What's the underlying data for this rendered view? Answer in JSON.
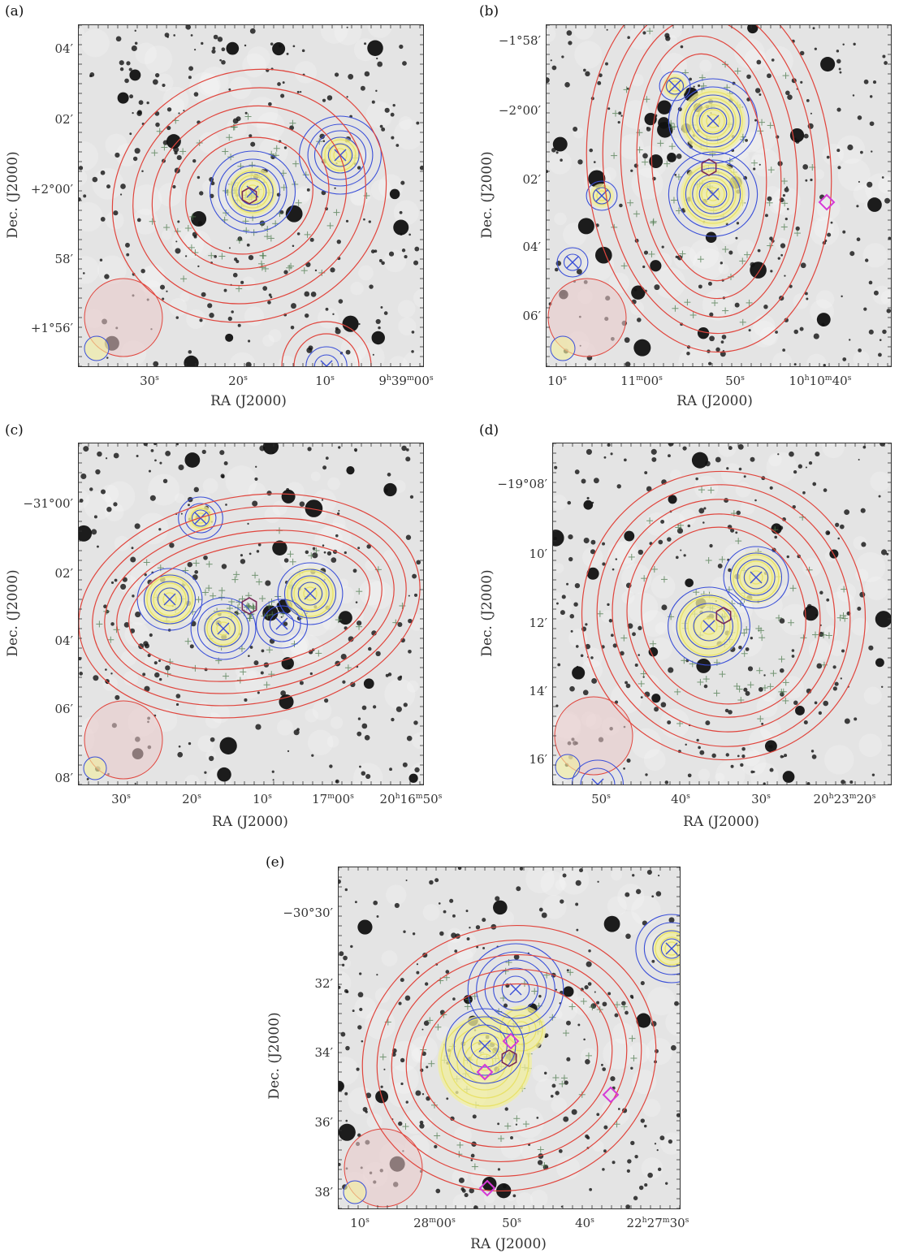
{
  "figure": {
    "panels": [
      {
        "letter": "(a)",
        "xlabel": "RA (J2000)",
        "ylabel": "Dec. (J2000)",
        "yticks": [
          "04′",
          "02′",
          "+2°00′",
          "58′",
          "+1°56′"
        ],
        "xticks": [
          "30s",
          "20s",
          "10s",
          "9h39m00s"
        ]
      },
      {
        "letter": "(b)",
        "xlabel": "RA (J2000)",
        "ylabel": "Dec. (J2000)",
        "yticks": [
          "−1°58′",
          "−2°00′",
          "02′",
          "04′",
          "06′"
        ],
        "xticks": [
          "10s",
          "11m00s",
          "50s",
          "10h10m40s"
        ]
      },
      {
        "letter": "(c)",
        "xlabel": "RA (J2000)",
        "ylabel": "Dec. (J2000)",
        "yticks": [
          "−31°00′",
          "02′",
          "04′",
          "06′",
          "08′"
        ],
        "xticks": [
          "30s",
          "20s",
          "10s",
          "17m00s",
          "20h16m50s"
        ]
      },
      {
        "letter": "(d)",
        "xlabel": "RA (J2000)",
        "ylabel": "Dec. (J2000)",
        "yticks": [
          "−19°08′",
          "10′",
          "12′",
          "14′",
          "16′"
        ],
        "xticks": [
          "50s",
          "40s",
          "30s",
          "20h23m20s"
        ]
      },
      {
        "letter": "(e)",
        "xlabel": "RA (J2000)",
        "ylabel": "Dec. (J2000)",
        "yticks": [
          "−30°30′",
          "32′",
          "34′",
          "36′",
          "38′"
        ],
        "xticks": [
          "10s",
          "28m00s",
          "50s",
          "40s",
          "22h27m30s"
        ]
      }
    ]
  },
  "colors": {
    "background": "#ffffff",
    "sky": "#e4e4e4",
    "stars": "#111111",
    "contour_red": "#e0453d",
    "contour_blue": "#3a4fd8",
    "contour_yellow": "#e8e26a",
    "yellow_fill": "#f1ef9e",
    "marker_magenta": "#d63ad6",
    "cross_green": "#4d7a4d",
    "beam_fill": "#e9c9c9"
  }
}
